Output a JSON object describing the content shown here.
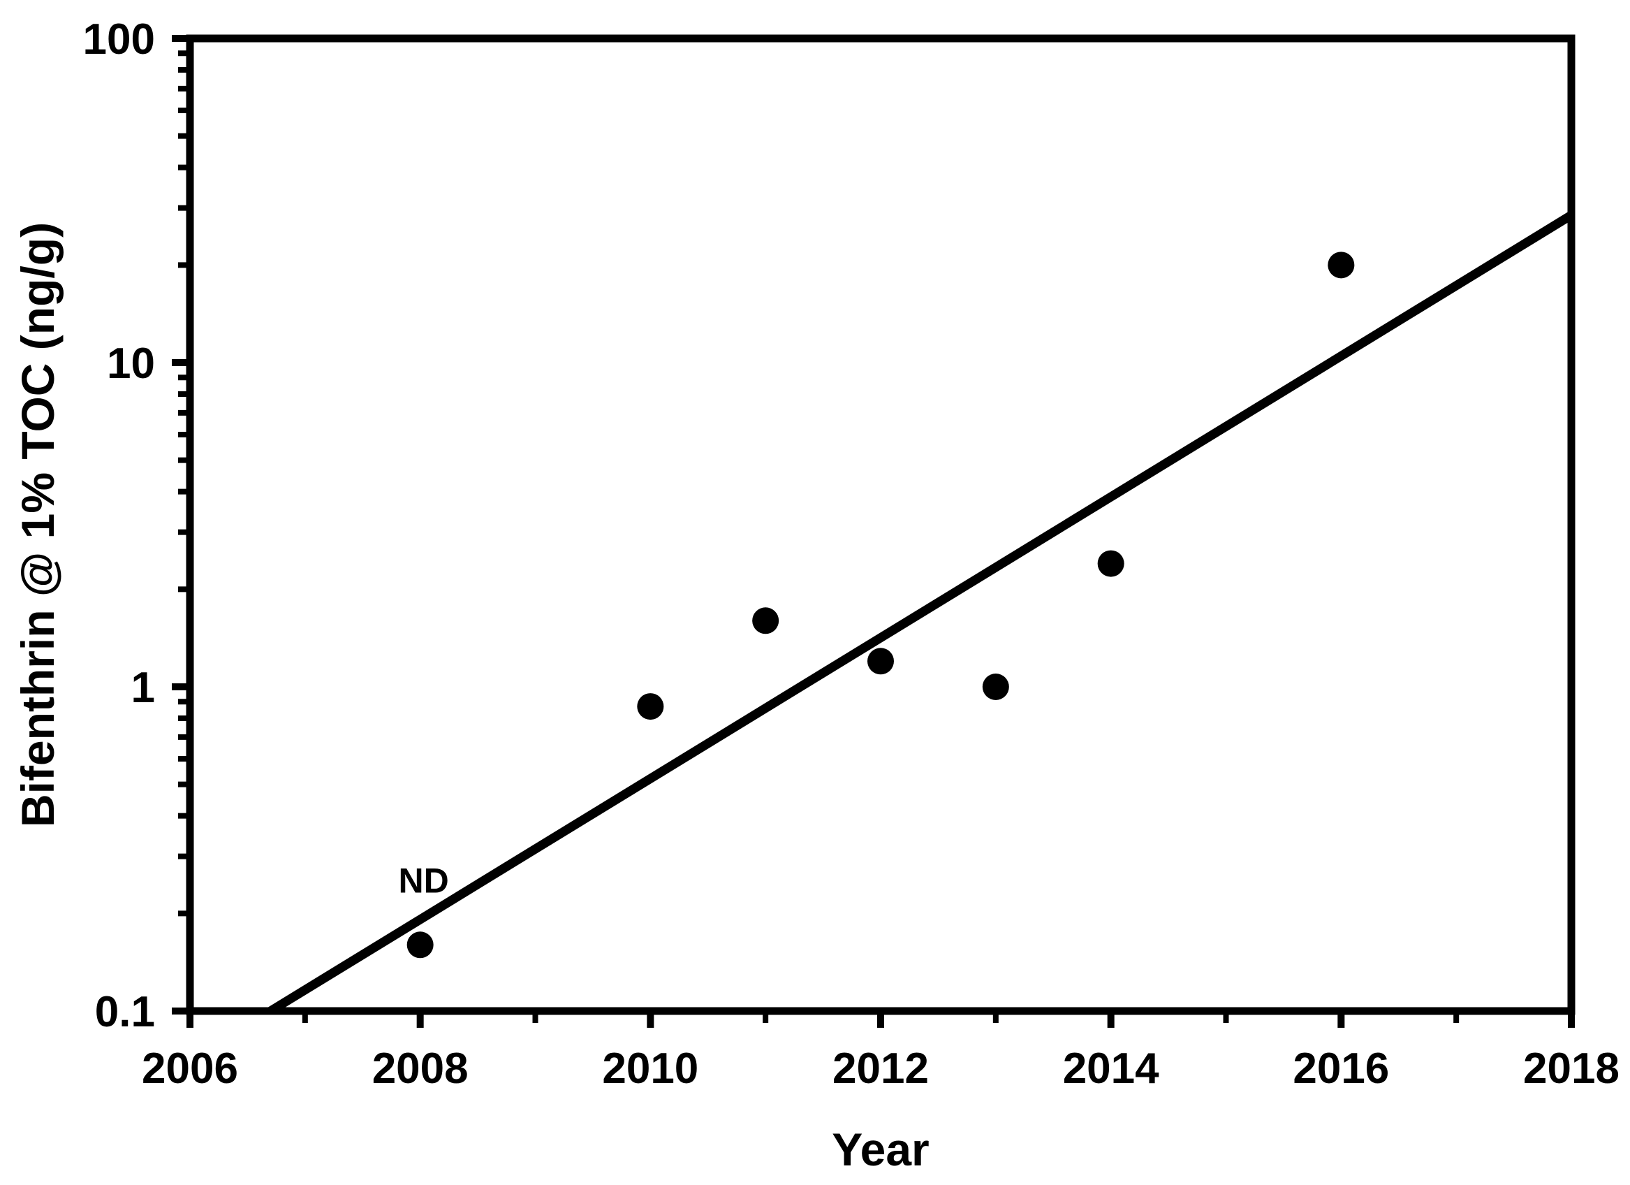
{
  "figure": {
    "background": "#ffffff",
    "foreground": "#000000"
  },
  "chart_data": {
    "type": "scatter",
    "title": "",
    "xlabel": "Year",
    "ylabel": "Bifenthrin @ 1% TOC (ng/g)",
    "grid": "off",
    "legend": "none",
    "x_axis": {
      "scale": "linear",
      "min": 2006,
      "max": 2018,
      "major_ticks": [
        2006,
        2008,
        2010,
        2012,
        2014,
        2016,
        2018
      ],
      "tick_labels": [
        "2006",
        "2008",
        "2010",
        "2012",
        "2014",
        "2016",
        "2018"
      ],
      "minor_ticks": [
        2007,
        2009,
        2011,
        2013,
        2015,
        2017
      ]
    },
    "y_axis": {
      "scale": "log",
      "min": 0.1,
      "max": 100,
      "major_ticks": [
        0.1,
        1,
        10,
        100
      ],
      "tick_labels": [
        "0.1",
        "1",
        "10",
        "100"
      ],
      "minor_tick_mantissas": [
        2,
        3,
        4,
        5,
        6,
        7,
        8,
        9
      ]
    },
    "series": [
      {
        "name": "Bifenthrin @ 1% TOC",
        "marker": {
          "shape": "circle",
          "color": "#000000"
        },
        "points": [
          {
            "year": 2008,
            "value": 0.16,
            "annotation": "ND"
          },
          {
            "year": 2010,
            "value": 0.87
          },
          {
            "year": 2011,
            "value": 1.6
          },
          {
            "year": 2012,
            "value": 1.2
          },
          {
            "year": 2013,
            "value": 1.0
          },
          {
            "year": 2014,
            "value": 2.4
          },
          {
            "year": 2016,
            "value": 20
          }
        ]
      }
    ],
    "trend_line": {
      "x1": 2006.7,
      "y1": 0.1,
      "x2": 2018,
      "y2": 28.5
    }
  }
}
